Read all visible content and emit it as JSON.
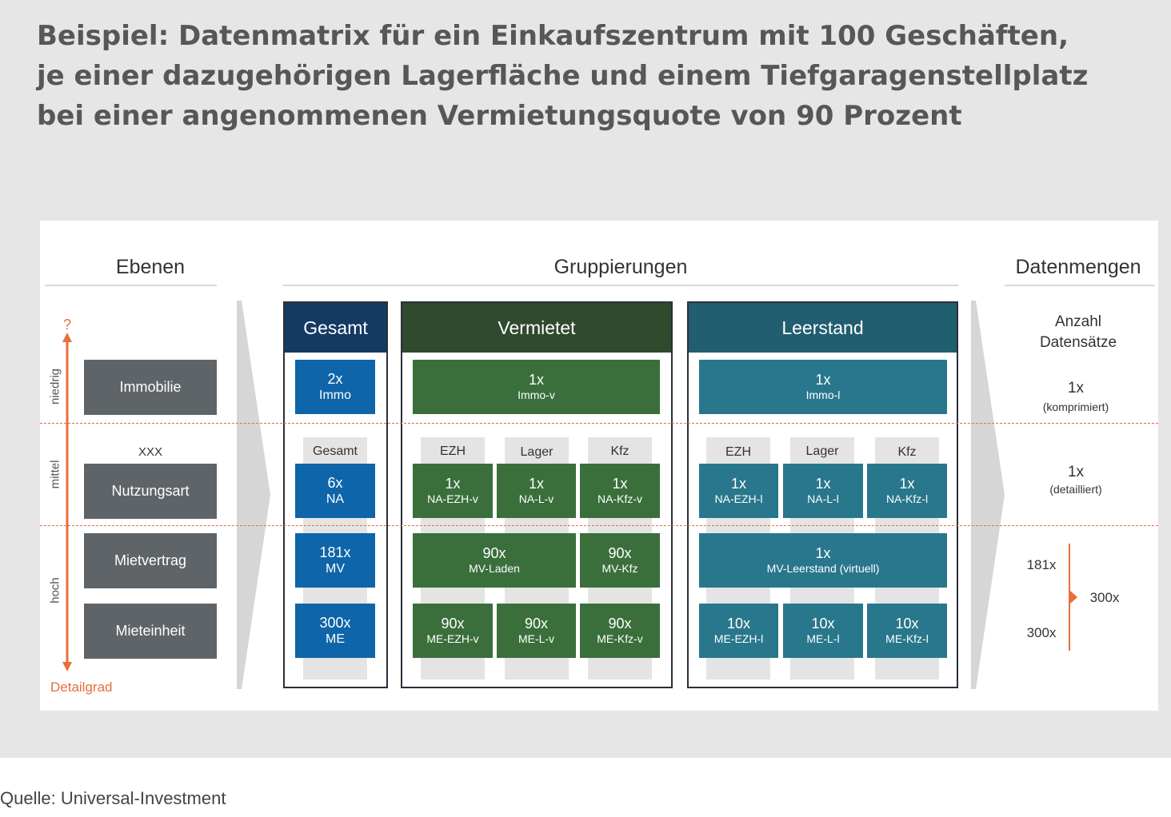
{
  "title": {
    "lines": [
      "Beispiel: Datenmatrix für ein Einkaufszentrum mit 100 Geschäften,",
      "je einer dazugehörigen Lagerfläche und einem Tiefgaragenstellplatz",
      "bei einer angenommenen Vermietungsquote von 90 Prozent"
    ]
  },
  "headers": {
    "ebenen": "Ebenen",
    "gruppierungen": "Gruppierungen",
    "datenmengen": "Datenmengen"
  },
  "axis": {
    "top": "?",
    "bottom": "Detailgrad",
    "niedrig": "niedrig",
    "mittel": "mittel",
    "hoch": "hoch"
  },
  "levels": {
    "xxx": "XXX",
    "immobilie": "Immobilie",
    "nutzungsart": "Nutzungsart",
    "mietvertrag": "Mietvertrag",
    "mieteinheit": "Mieteinheit"
  },
  "gesamt": {
    "title": "Gesamt",
    "col": "Gesamt",
    "immo": {
      "num": "2x",
      "lbl": "Immo"
    },
    "na": {
      "num": "6x",
      "lbl": "NA"
    },
    "mv": {
      "num": "181x",
      "lbl": "MV"
    },
    "me": {
      "num": "300x",
      "lbl": "ME"
    }
  },
  "vermietet": {
    "title": "Vermietet",
    "cols": {
      "ezh": "EZH",
      "lager": "Lager",
      "kfz": "Kfz"
    },
    "immo": {
      "num": "1x",
      "lbl": "Immo-v"
    },
    "na_ezh": {
      "num": "1x",
      "lbl": "NA-EZH-v"
    },
    "na_l": {
      "num": "1x",
      "lbl": "NA-L-v"
    },
    "na_kfz": {
      "num": "1x",
      "lbl": "NA-Kfz-v"
    },
    "mv_laden": {
      "num": "90x",
      "lbl": "MV-Laden"
    },
    "mv_kfz": {
      "num": "90x",
      "lbl": "MV-Kfz"
    },
    "me_ezh": {
      "num": "90x",
      "lbl": "ME-EZH-v"
    },
    "me_l": {
      "num": "90x",
      "lbl": "ME-L-v"
    },
    "me_kfz": {
      "num": "90x",
      "lbl": "ME-Kfz-v"
    }
  },
  "leerstand": {
    "title": "Leerstand",
    "cols": {
      "ezh": "EZH",
      "lager": "Lager",
      "kfz": "Kfz"
    },
    "immo": {
      "num": "1x",
      "lbl": "Immo-l"
    },
    "na_ezh": {
      "num": "1x",
      "lbl": "NA-EZH-l"
    },
    "na_l": {
      "num": "1x",
      "lbl": "NA-L-l"
    },
    "na_kfz": {
      "num": "1x",
      "lbl": "NA-Kfz-l"
    },
    "mv": {
      "num": "1x",
      "lbl": "MV-Leerstand (virtuell)"
    },
    "me_ezh": {
      "num": "10x",
      "lbl": "ME-EZH-l"
    },
    "me_l": {
      "num": "10x",
      "lbl": "ME-L-l"
    },
    "me_kfz": {
      "num": "10x",
      "lbl": "ME-Kfz-l"
    }
  },
  "datenmengen": {
    "anzahl_line1": "Anzahl",
    "anzahl_line2": "Datensätze",
    "row1_num": "1x",
    "row1_lbl": "(komprimiert)",
    "row2_num": "1x",
    "row2_lbl": "(detailliert)",
    "mv": "181x",
    "me": "300x",
    "total": "300x"
  },
  "colors": {
    "gesamt_head": "#123a63",
    "vermietet_head": "#2f4a2c",
    "leerstand_head": "#215e6f",
    "axis": "#e76f3c"
  },
  "source": "Quelle: Universal-Investment"
}
